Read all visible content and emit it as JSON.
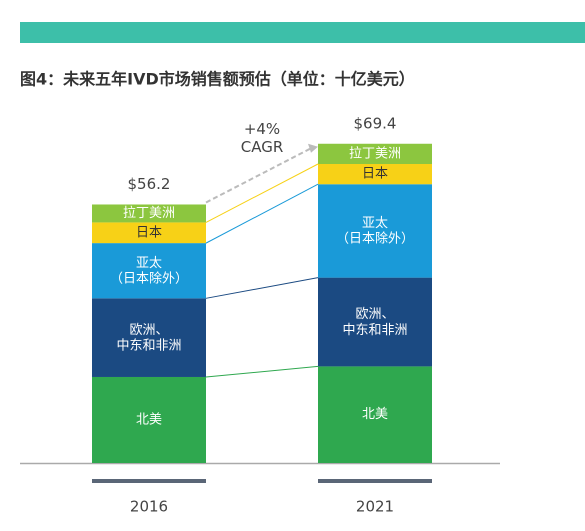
{
  "chart_data": {
    "type": "stacked_bar",
    "title": "图4：未来五年IVD市场销售额预估（单位：十亿美元）",
    "categories": [
      "2016",
      "2021"
    ],
    "series": [
      {
        "name": "北美",
        "color": "#2fa84f",
        "values": [
          18.7,
          21.0
        ]
      },
      {
        "name": "欧洲、\n中东和非洲",
        "color": "#1b4a82",
        "values": [
          17.1,
          19.3
        ]
      },
      {
        "name": "亚太\n（日本除外）",
        "color": "#1a9ad8",
        "values": [
          12.0,
          20.3
        ]
      },
      {
        "name": "日本",
        "color": "#f7d117",
        "values": [
          4.5,
          4.4
        ]
      },
      {
        "name": "拉丁美洲",
        "color": "#8cc63f",
        "values": [
          3.9,
          4.4
        ]
      }
    ],
    "totals": [
      56.2,
      69.4
    ],
    "total_labels": [
      "$56.2",
      "$69.4"
    ],
    "annotation": "+4%\nCAGR",
    "ylim": [
      0,
      75
    ]
  }
}
